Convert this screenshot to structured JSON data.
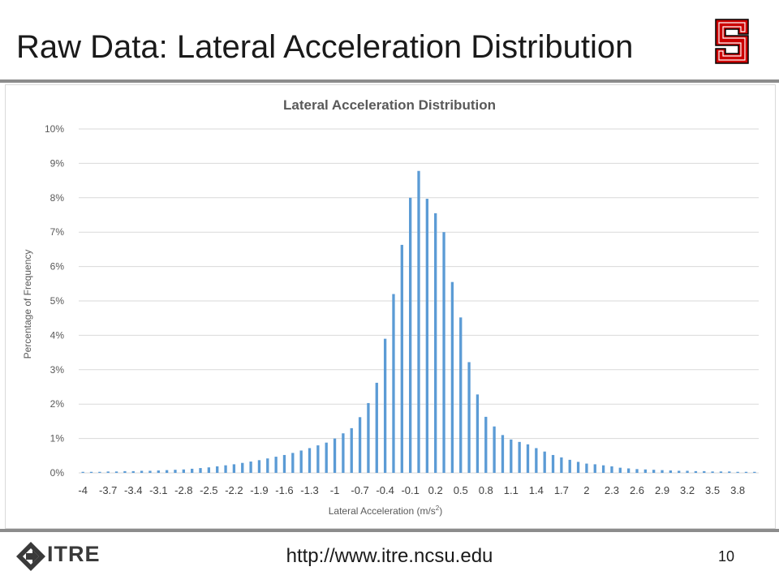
{
  "slide": {
    "title": "Raw Data: Lateral Acceleration Distribution",
    "footer_url": "http://www.itre.ncsu.edu",
    "page_number": "10",
    "logo_text": "ITRE"
  },
  "colors": {
    "bar": "#5b9bd5",
    "grid": "#d9d9d9",
    "brand_red": "#cc0000"
  },
  "chart_data": {
    "type": "bar",
    "title": "Lateral Acceleration Distribution",
    "xlabel": "Lateral Acceleration (m/s",
    "xlabel_sup": "2",
    "xlabel_end": ")",
    "ylabel": "Percentage of Frequency",
    "ylim": [
      0,
      10
    ],
    "yticks": [
      "0%",
      "1%",
      "2%",
      "3%",
      "4%",
      "5%",
      "6%",
      "7%",
      "8%",
      "9%",
      "10%"
    ],
    "grid": true,
    "x_tick_labels": [
      "-4",
      "-3.7",
      "-3.4",
      "-3.1",
      "-2.8",
      "-2.5",
      "-2.2",
      "-1.9",
      "-1.6",
      "-1.3",
      "-1",
      "-0.7",
      "-0.4",
      "-0.1",
      "0.2",
      "0.5",
      "0.8",
      "1.1",
      "1.4",
      "1.7",
      "2",
      "2.3",
      "2.6",
      "2.9",
      "3.2",
      "3.5",
      "3.8"
    ],
    "categories": [
      "-4",
      "-3.9",
      "-3.8",
      "-3.7",
      "-3.6",
      "-3.5",
      "-3.4",
      "-3.3",
      "-3.2",
      "-3.1",
      "-3",
      "-2.9",
      "-2.8",
      "-2.7",
      "-2.6",
      "-2.5",
      "-2.4",
      "-2.3",
      "-2.2",
      "-2.1",
      "-2",
      "-1.9",
      "-1.8",
      "-1.7",
      "-1.6",
      "-1.5",
      "-1.4",
      "-1.3",
      "-1.2",
      "-1.1",
      "-1",
      "-0.9",
      "-0.8",
      "-0.7",
      "-0.6",
      "-0.5",
      "-0.4",
      "-0.3",
      "-0.2",
      "-0.1",
      "0",
      "0.1",
      "0.2",
      "0.3",
      "0.4",
      "0.5",
      "0.6",
      "0.7",
      "0.8",
      "0.9",
      "1",
      "1.1",
      "1.2",
      "1.3",
      "1.4",
      "1.5",
      "1.6",
      "1.7",
      "1.8",
      "1.9",
      "2",
      "2.1",
      "2.2",
      "2.3",
      "2.4",
      "2.5",
      "2.6",
      "2.7",
      "2.8",
      "2.9",
      "3",
      "3.1",
      "3.2",
      "3.3",
      "3.4",
      "3.5",
      "3.6",
      "3.7",
      "3.8",
      "3.9",
      "4"
    ],
    "values": [
      0.03,
      0.03,
      0.03,
      0.04,
      0.04,
      0.05,
      0.05,
      0.06,
      0.06,
      0.07,
      0.08,
      0.09,
      0.1,
      0.12,
      0.14,
      0.16,
      0.19,
      0.22,
      0.25,
      0.29,
      0.33,
      0.37,
      0.42,
      0.47,
      0.52,
      0.58,
      0.65,
      0.72,
      0.8,
      0.88,
      1.0,
      1.15,
      1.3,
      1.62,
      2.03,
      2.62,
      3.9,
      5.2,
      6.63,
      8.0,
      8.78,
      7.97,
      7.55,
      7.0,
      5.55,
      4.52,
      3.22,
      2.28,
      1.63,
      1.35,
      1.1,
      0.97,
      0.9,
      0.83,
      0.72,
      0.62,
      0.52,
      0.45,
      0.38,
      0.32,
      0.27,
      0.25,
      0.22,
      0.19,
      0.15,
      0.13,
      0.11,
      0.1,
      0.09,
      0.08,
      0.07,
      0.06,
      0.06,
      0.05,
      0.05,
      0.04,
      0.04,
      0.04,
      0.03,
      0.03,
      0.03
    ]
  }
}
